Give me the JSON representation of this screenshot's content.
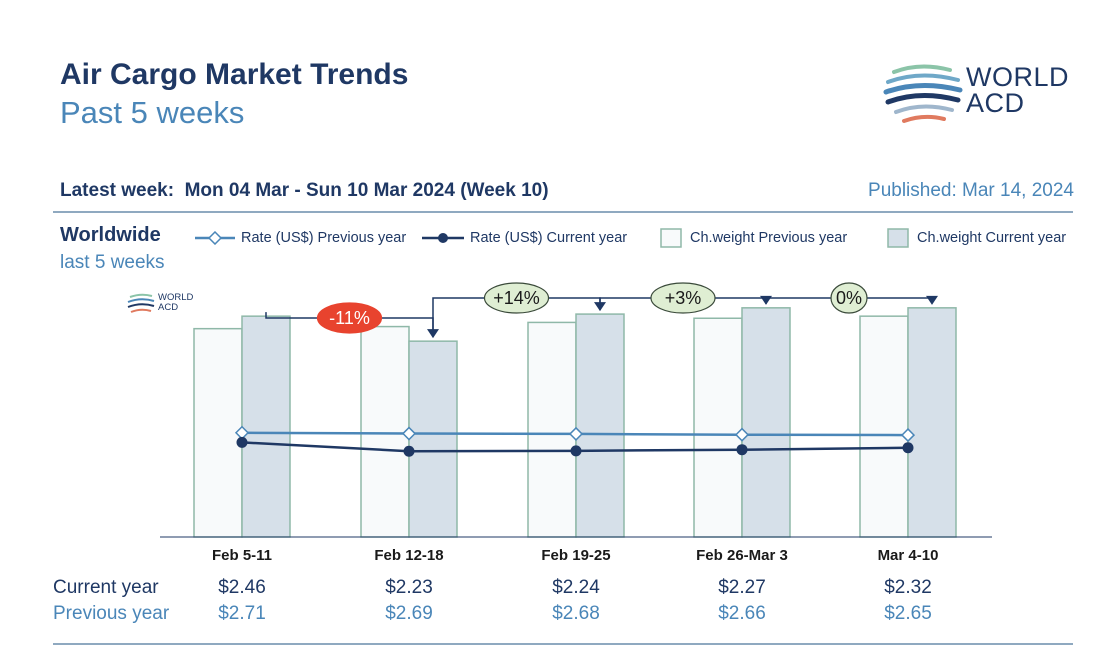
{
  "header": {
    "title": "Air Cargo Market Trends",
    "subtitle": "Past 5 weeks",
    "latest_week_label": "Latest week:",
    "latest_week_value": "Mon 04 Mar - Sun 10 Mar 2024 (Week 10)",
    "published": "Published: Mar 14, 2024"
  },
  "logo": {
    "line1": "WORLD",
    "line2": "ACD",
    "stripe_colors": [
      "#8bc4a8",
      "#4a86b8",
      "#1f3864",
      "#e07a5f"
    ]
  },
  "region": {
    "name": "Worldwide",
    "period": "last 5 weeks"
  },
  "legend": {
    "rate_prev": "Rate (US$) Previous year",
    "rate_cur": "Rate (US$) Current year",
    "weight_prev": "Ch.weight Previous year",
    "weight_cur": "Ch.weight Current year"
  },
  "colors": {
    "navy": "#1f3864",
    "light_blue_line": "#4a86b8",
    "bar_prev_fill": "#f8fafb",
    "bar_cur_fill": "#d6e0e9",
    "bar_border": "#8fb8a8",
    "negative_badge": "#e8432e",
    "positive_badge": "#dfeed3"
  },
  "chart_data": {
    "type": "bar",
    "categories": [
      "Feb 5-11",
      "Feb 12-18",
      "Feb 19-25",
      "Feb 26-Mar 3",
      "Mar 4-10"
    ],
    "series": [
      {
        "name": "Ch.weight Previous year",
        "type": "bar",
        "values": [
          100,
          101,
          103,
          105,
          106
        ]
      },
      {
        "name": "Ch.weight Current year",
        "type": "bar",
        "values": [
          106,
          94,
          107,
          110,
          110
        ]
      },
      {
        "name": "Rate (US$) Previous year",
        "type": "line",
        "values": [
          2.71,
          2.69,
          2.68,
          2.66,
          2.65
        ]
      },
      {
        "name": "Rate (US$) Current year",
        "type": "line",
        "values": [
          2.46,
          2.23,
          2.24,
          2.27,
          2.32
        ]
      }
    ],
    "changes": [
      {
        "label": "-11%",
        "from": 0,
        "to": 1,
        "sign": "negative"
      },
      {
        "label": "+14%",
        "from": 1,
        "to": 2,
        "sign": "positive"
      },
      {
        "label": "+3%",
        "from": 2,
        "to": 3,
        "sign": "positive"
      },
      {
        "label": "0%",
        "from": 3,
        "to": 4,
        "sign": "positive"
      }
    ],
    "weight_scale": [
      0,
      120
    ],
    "rate_scale": [
      0,
      6.5
    ]
  },
  "table": {
    "current_label": "Current year",
    "previous_label": "Previous year",
    "current": [
      "$2.46",
      "$2.23",
      "$2.24",
      "$2.27",
      "$2.32"
    ],
    "previous": [
      "$2.71",
      "$2.69",
      "$2.68",
      "$2.66",
      "$2.65"
    ]
  }
}
